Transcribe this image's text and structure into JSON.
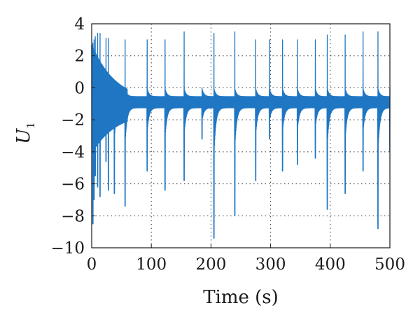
{
  "chart_data": {
    "type": "line",
    "title": "",
    "xlabel": "Time (s)",
    "ylabel_main": "U",
    "ylabel_sub": "1",
    "xlim": [
      0,
      500
    ],
    "ylim": [
      -10,
      4
    ],
    "x_ticks": [
      0,
      100,
      200,
      300,
      400,
      500
    ],
    "y_ticks": [
      4,
      2,
      0,
      -2,
      -4,
      -6,
      -8,
      -10
    ],
    "y_tick_labels": [
      "4",
      "2",
      "0",
      "−2",
      "−4",
      "−6",
      "−8",
      "−10"
    ],
    "grid": "dotted",
    "line_color": "#1f77c4",
    "baseline": -0.9,
    "series": [
      {
        "spike_times": [
          2,
          4,
          6,
          10,
          14,
          24,
          28,
          38,
          56,
          93,
          123,
          155,
          185,
          205,
          240,
          275,
          298,
          320,
          345,
          375,
          395,
          425,
          455,
          480,
          500
        ],
        "spike_min": [
          -8.5,
          -7.0,
          -5.5,
          -6.2,
          -6.8,
          -4.6,
          -6.4,
          -6.6,
          -7.4,
          -5.2,
          -6.4,
          -5.8,
          -3.2,
          -9.4,
          -8.0,
          -5.8,
          -3.2,
          -5.2,
          -4.8,
          -4.4,
          -7.6,
          -6.6,
          -5.2,
          -8.8,
          -4.0
        ],
        "spike_max": [
          2.8,
          3.0,
          3.2,
          3.4,
          3.4,
          3.1,
          3.1,
          0.0,
          3.0,
          3.0,
          3.0,
          3.5,
          0.0,
          3.4,
          3.5,
          3.0,
          3.0,
          3.0,
          3.0,
          3.0,
          3.3,
          3.3,
          3.5,
          3.5,
          0.0
        ]
      }
    ]
  }
}
